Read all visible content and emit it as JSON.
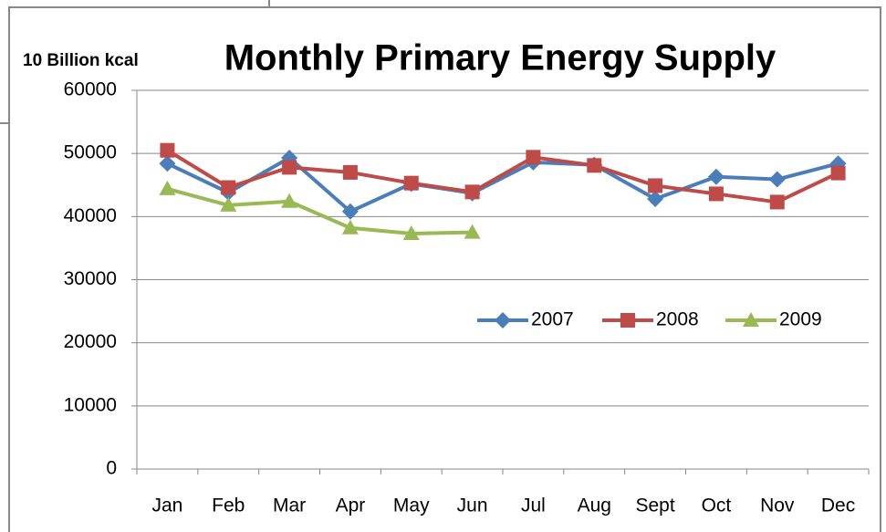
{
  "chart_data": {
    "type": "line",
    "title": "Monthly Primary Energy Supply",
    "y_label": "10 Billion kcal",
    "categories": [
      "Jan",
      "Feb",
      "Mar",
      "Apr",
      "May",
      "Jun",
      "Jul",
      "Aug",
      "Sept",
      "Oct",
      "Nov",
      "Dec"
    ],
    "series": [
      {
        "name": "2007",
        "color": "#4a7ebb",
        "marker": "diamond",
        "values": [
          48400,
          43800,
          49300,
          40800,
          45200,
          43700,
          48600,
          48200,
          42800,
          46300,
          45900,
          48400
        ]
      },
      {
        "name": "2008",
        "color": "#be4b48",
        "marker": "square",
        "values": [
          50500,
          44600,
          47800,
          47000,
          45300,
          43900,
          49400,
          48100,
          44900,
          43600,
          42300,
          46900
        ]
      },
      {
        "name": "2009",
        "color": "#98b954",
        "marker": "triangle",
        "values": [
          44400,
          41800,
          42400,
          38200,
          37300,
          37500,
          null,
          null,
          null,
          null,
          null,
          null
        ]
      }
    ],
    "ylim": [
      0,
      60000
    ],
    "yticks": [
      0,
      10000,
      20000,
      30000,
      40000,
      50000,
      60000
    ],
    "grid": true
  }
}
